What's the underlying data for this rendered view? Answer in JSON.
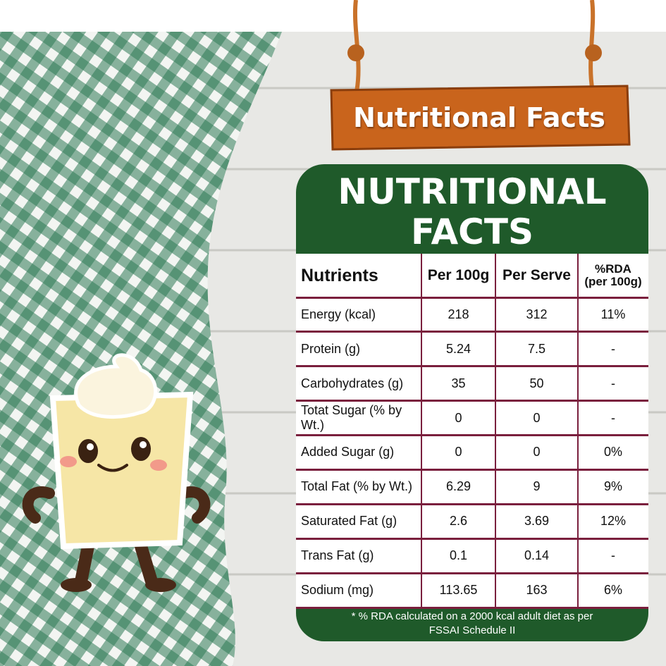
{
  "sign": {
    "title": "Nutritional Facts"
  },
  "panel": {
    "title_lines": [
      "NUTRITIONAL",
      "FACTS"
    ],
    "table": {
      "header": [
        "Nutrients",
        "Per 100g",
        "Per Serve",
        [
          "%RDA",
          "(per 100g)"
        ]
      ],
      "rows": [
        [
          "Energy (kcal)",
          "218",
          "312",
          "11%"
        ],
        [
          "Protein (g)",
          "5.24",
          "7.5",
          "-"
        ],
        [
          "Carbohydrates (g)",
          "35",
          "50",
          "-"
        ],
        [
          "Totat Sugar (% by Wt.)",
          "0",
          "0",
          "-"
        ],
        [
          "Added Sugar (g)",
          "0",
          "0",
          "0%"
        ],
        [
          "Total Fat (% by Wt.)",
          "6.29",
          "9",
          "9%"
        ],
        [
          "Saturated Fat (g)",
          "2.6",
          "3.69",
          "12%"
        ],
        [
          "Trans Fat (g)",
          "0.1",
          "0.14",
          "-"
        ],
        [
          "Sodium (mg)",
          "113.65",
          "163",
          "6%"
        ]
      ]
    },
    "footnote_lines": [
      "* % RDA calculated on a 2000 kcal adult diet as per",
      "FSSAI Schedule II"
    ]
  }
}
